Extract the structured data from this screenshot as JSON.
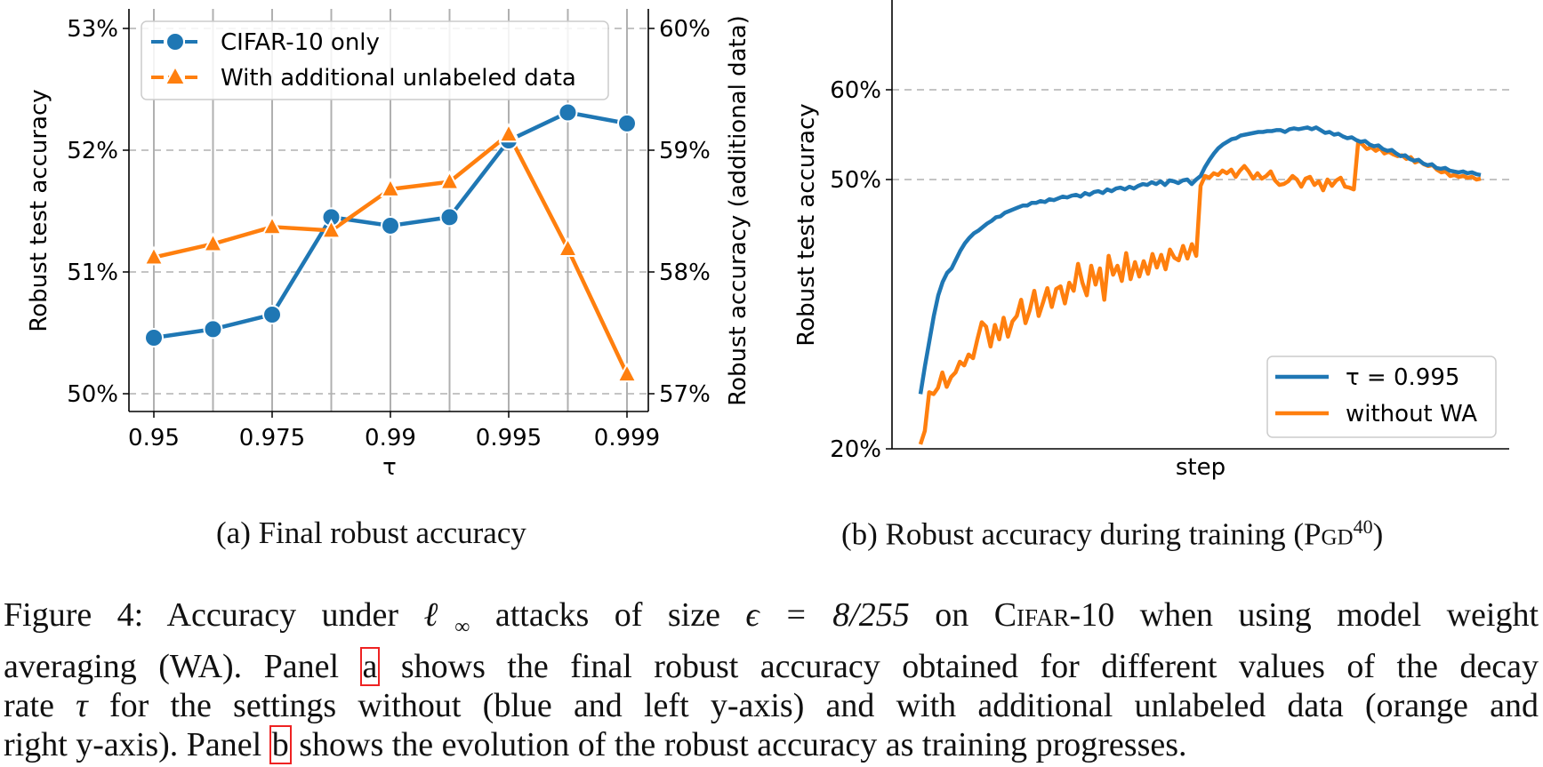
{
  "chart_data": [
    {
      "type": "line",
      "x_ticks": [
        "0.95",
        "0.975",
        "0.99",
        "0.995",
        "0.999"
      ],
      "xlabel": "τ",
      "ylabel": "Robust test accuracy",
      "ylabel_right": "Robust accuracy (additional data)",
      "y_ticks": [
        "50%",
        "51%",
        "52%",
        "53%"
      ],
      "y_ticks_right": [
        "57%",
        "58%",
        "59%",
        "60%"
      ],
      "ylim": [
        49.9,
        53.15
      ],
      "ylim_right": [
        56.9,
        60.15
      ],
      "grid": "dashed horizontal and solid vertical",
      "legend_position": "top-left",
      "series": [
        {
          "name": "CIFAR-10 only",
          "axis": "left",
          "color": "#1f77b4",
          "marker": "circle",
          "values": [
            50.46,
            50.53,
            50.65,
            51.45,
            51.38,
            51.45,
            52.08,
            52.31,
            52.22
          ]
        },
        {
          "name": "With additional unlabeled data",
          "axis": "right",
          "color": "#ff7f0e",
          "marker": "triangle",
          "values": [
            58.12,
            58.23,
            58.37,
            58.34,
            58.68,
            58.74,
            59.13,
            58.19,
            57.16
          ]
        }
      ]
    },
    {
      "type": "line",
      "xlabel": "step",
      "ylabel": "Robust test accuracy",
      "y_ticks": [
        "20%",
        "50%",
        "60%"
      ],
      "ylim": [
        20,
        71
      ],
      "grid": "dashed horizontal at 50% and 60%",
      "legend_position": "bottom-right",
      "series": [
        {
          "name": "τ = 0.995",
          "color": "#1f77b4",
          "values": [
            26.1,
            29.2,
            32,
            34.8,
            37.1,
            38.6,
            39.6,
            40.1,
            41.1,
            42.1,
            42.9,
            43.5,
            44,
            44.3,
            44.7,
            45.1,
            45.4,
            45.8,
            45.9,
            46.3,
            46.5,
            46.7,
            46.9,
            47.1,
            47.1,
            47.4,
            47.4,
            47.6,
            47.5,
            47.8,
            47.7,
            47.9,
            48.1,
            48.0,
            48.2,
            48.3,
            48.1,
            48.5,
            48.3,
            48.6,
            48.7,
            48.5,
            48.9,
            48.7,
            49.0,
            49.1,
            48.9,
            49.2,
            49.0,
            49.3,
            49.5,
            49.4,
            49.7,
            49.5,
            49.8,
            49.4,
            49.9,
            49.8,
            49.6,
            49.9,
            50.0,
            49.5,
            50.0,
            50.4,
            51.4,
            52.2,
            52.9,
            53.5,
            53.9,
            54.2,
            54.5,
            54.6,
            54.9,
            55.0,
            55.1,
            55.2,
            55.3,
            55.3,
            55.4,
            55.4,
            55.5,
            55.5,
            55.3,
            55.6,
            55.7,
            55.6,
            55.7,
            55.8,
            55.6,
            55.8,
            55.5,
            55.2,
            55.3,
            55.0,
            55.1,
            54.8,
            54.6,
            54.7,
            54.4,
            54.2,
            54.3,
            53.9,
            53.7,
            53.8,
            53.4,
            53.2,
            53.3,
            52.9,
            52.6,
            52.7,
            52.3,
            52.1,
            52.2,
            51.8,
            51.6,
            51.7,
            51.3,
            51.2,
            51.3,
            51.0,
            50.9,
            50.8,
            50.9,
            50.7,
            50.8,
            50.6,
            50.5
          ]
        },
        {
          "name": "without WA",
          "color": "#ff7f0e",
          "values": [
            20.5,
            22,
            26.3,
            26.1,
            26.8,
            28.5,
            26.9,
            28.0,
            28.5,
            29.7,
            29.3,
            30.5,
            30.1,
            32.2,
            34.1,
            33.6,
            31.4,
            33.8,
            32.2,
            34.6,
            32.5,
            34.2,
            34.8,
            36.6,
            34.0,
            35.5,
            37.6,
            34.8,
            36.3,
            37.9,
            35.8,
            37.8,
            38.1,
            36.2,
            38.5,
            37.6,
            40.6,
            38.5,
            37.1,
            40.4,
            38.3,
            40.1,
            36.6,
            41.5,
            39.4,
            40.4,
            38.7,
            41.8,
            38.9,
            40.8,
            39.2,
            40.9,
            39.5,
            41.7,
            40.2,
            41.6,
            40.0,
            42.2,
            41.3,
            41.0,
            42.6,
            41.2,
            42.8,
            41.5,
            49.3,
            50.4,
            50.2,
            50.7,
            50.5,
            51.0,
            50.7,
            51.1,
            50.3,
            51.0,
            51.5,
            50.9,
            50.1,
            50.7,
            50.1,
            50.4,
            50.9,
            49.9,
            49.4,
            49.5,
            49.8,
            50.4,
            50.0,
            49.2,
            50.1,
            50.3,
            49.4,
            49.8,
            48.8,
            50.0,
            49.3,
            49.9,
            50.2,
            49.2,
            49.1,
            48.9,
            54.2,
            53.9,
            53.4,
            53.6,
            53.2,
            53.5,
            52.9,
            53.1,
            52.8,
            52.6,
            52.7,
            52.3,
            52.5,
            51.9,
            52.1,
            51.7,
            51.5,
            51.6,
            51.1,
            50.8,
            50.9,
            50.4,
            50.5,
            50.3,
            50.4,
            50.2,
            50.3,
            50.0,
            50.1
          ]
        }
      ]
    }
  ],
  "captions": {
    "panel_a": "(a) Final robust accuracy",
    "panel_b_text": "(b) Robust accuracy during training (",
    "panel_b_pgd": "Pgd",
    "panel_b_sup": "40",
    "panel_b_close": ")"
  },
  "figure_caption": {
    "l1_a": "Figure 4:  Accuracy under ",
    "l1_ell": "ℓ",
    "l1_inf": "∞",
    "l1_b": " attacks of size ",
    "l1_eps": "ϵ = 8/255",
    "l1_c": " on ",
    "l1_cifar": "Cifar",
    "l1_d": "-10 when using model weight",
    "l2_a": "averaging (WA). Panel ",
    "l2_ref": "a",
    "l2_b": " shows the final robust accuracy obtained for different values of the decay",
    "l3_a": "rate ",
    "l3_tau": "τ",
    "l3_b": " for the settings without (blue and left y-axis) and with additional unlabeled data (orange and",
    "l4_a": "right y-axis). Panel ",
    "l4_ref": "b",
    "l4_b": " shows the evolution of the robust accuracy as training progresses."
  }
}
